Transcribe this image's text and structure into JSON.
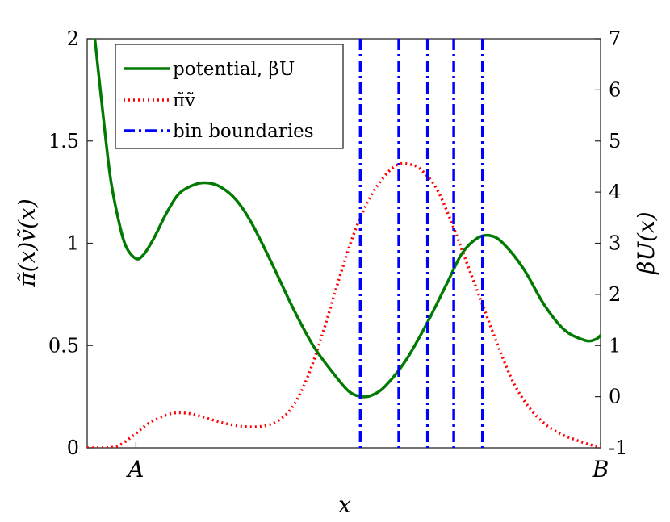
{
  "chart_data": {
    "type": "line",
    "x_range": [
      0,
      1
    ],
    "left_axis": {
      "label": "π̃(x)ṽ(x)",
      "range": [
        0,
        2
      ],
      "ticks": [
        0,
        0.5,
        1,
        1.5,
        2
      ],
      "tick_labels": [
        "0",
        "0.5",
        "1",
        "1.5",
        "2"
      ]
    },
    "right_axis": {
      "label": "βU(x)",
      "range": [
        -1,
        7
      ],
      "ticks": [
        -1,
        0,
        1,
        2,
        3,
        4,
        5,
        6,
        7
      ],
      "tick_labels": [
        "-1",
        "0",
        "1",
        "2",
        "3",
        "4",
        "5",
        "6",
        "7"
      ]
    },
    "x_axis": {
      "label": "x",
      "tick_labels": [
        {
          "x": 0.095,
          "label": "A"
        },
        {
          "x": 1.0,
          "label": "B"
        }
      ]
    },
    "legend": {
      "placement": "top-left",
      "entries": [
        {
          "label": "potential, βU",
          "color": "#007a00",
          "style": "solid"
        },
        {
          "label": "π̃ṽ",
          "color": "#ff0000",
          "style": "dotted"
        },
        {
          "label": "bin boundaries",
          "color": "#0000ff",
          "style": "dashdot"
        }
      ]
    },
    "series": [
      {
        "name": "potential, βU",
        "axis": "right",
        "color": "#007a00",
        "points": [
          [
            0.015,
            7.0
          ],
          [
            0.03,
            5.6
          ],
          [
            0.045,
            4.3
          ],
          [
            0.06,
            3.5
          ],
          [
            0.075,
            2.95
          ],
          [
            0.095,
            2.7
          ],
          [
            0.11,
            2.78
          ],
          [
            0.13,
            3.1
          ],
          [
            0.155,
            3.6
          ],
          [
            0.18,
            3.98
          ],
          [
            0.21,
            4.15
          ],
          [
            0.235,
            4.18
          ],
          [
            0.26,
            4.1
          ],
          [
            0.29,
            3.85
          ],
          [
            0.32,
            3.4
          ],
          [
            0.36,
            2.6
          ],
          [
            0.4,
            1.75
          ],
          [
            0.44,
            1.0
          ],
          [
            0.48,
            0.45
          ],
          [
            0.51,
            0.1
          ],
          [
            0.535,
            0.0
          ],
          [
            0.555,
            0.03
          ],
          [
            0.58,
            0.2
          ],
          [
            0.62,
            0.7
          ],
          [
            0.66,
            1.4
          ],
          [
            0.7,
            2.2
          ],
          [
            0.73,
            2.8
          ],
          [
            0.76,
            3.1
          ],
          [
            0.785,
            3.15
          ],
          [
            0.81,
            3.0
          ],
          [
            0.85,
            2.5
          ],
          [
            0.89,
            1.8
          ],
          [
            0.93,
            1.3
          ],
          [
            0.97,
            1.1
          ],
          [
            0.99,
            1.12
          ],
          [
            1.0,
            1.2
          ]
        ]
      },
      {
        "name": "π̃ṽ",
        "axis": "left",
        "color": "#ff0000",
        "points": [
          [
            0.0,
            0.0
          ],
          [
            0.03,
            0.0
          ],
          [
            0.06,
            0.01
          ],
          [
            0.09,
            0.06
          ],
          [
            0.12,
            0.12
          ],
          [
            0.16,
            0.165
          ],
          [
            0.19,
            0.17
          ],
          [
            0.22,
            0.155
          ],
          [
            0.26,
            0.125
          ],
          [
            0.3,
            0.105
          ],
          [
            0.34,
            0.105
          ],
          [
            0.37,
            0.13
          ],
          [
            0.4,
            0.2
          ],
          [
            0.43,
            0.35
          ],
          [
            0.46,
            0.57
          ],
          [
            0.49,
            0.82
          ],
          [
            0.52,
            1.05
          ],
          [
            0.55,
            1.22
          ],
          [
            0.58,
            1.33
          ],
          [
            0.605,
            1.385
          ],
          [
            0.63,
            1.385
          ],
          [
            0.65,
            1.36
          ],
          [
            0.68,
            1.27
          ],
          [
            0.71,
            1.1
          ],
          [
            0.74,
            0.9
          ],
          [
            0.77,
            0.7
          ],
          [
            0.8,
            0.5
          ],
          [
            0.83,
            0.32
          ],
          [
            0.86,
            0.2
          ],
          [
            0.89,
            0.12
          ],
          [
            0.92,
            0.07
          ],
          [
            0.95,
            0.04
          ],
          [
            0.98,
            0.015
          ],
          [
            1.0,
            0.005
          ]
        ]
      }
    ],
    "bin_boundaries": [
      0.532,
      0.607,
      0.663,
      0.714,
      0.77
    ]
  }
}
